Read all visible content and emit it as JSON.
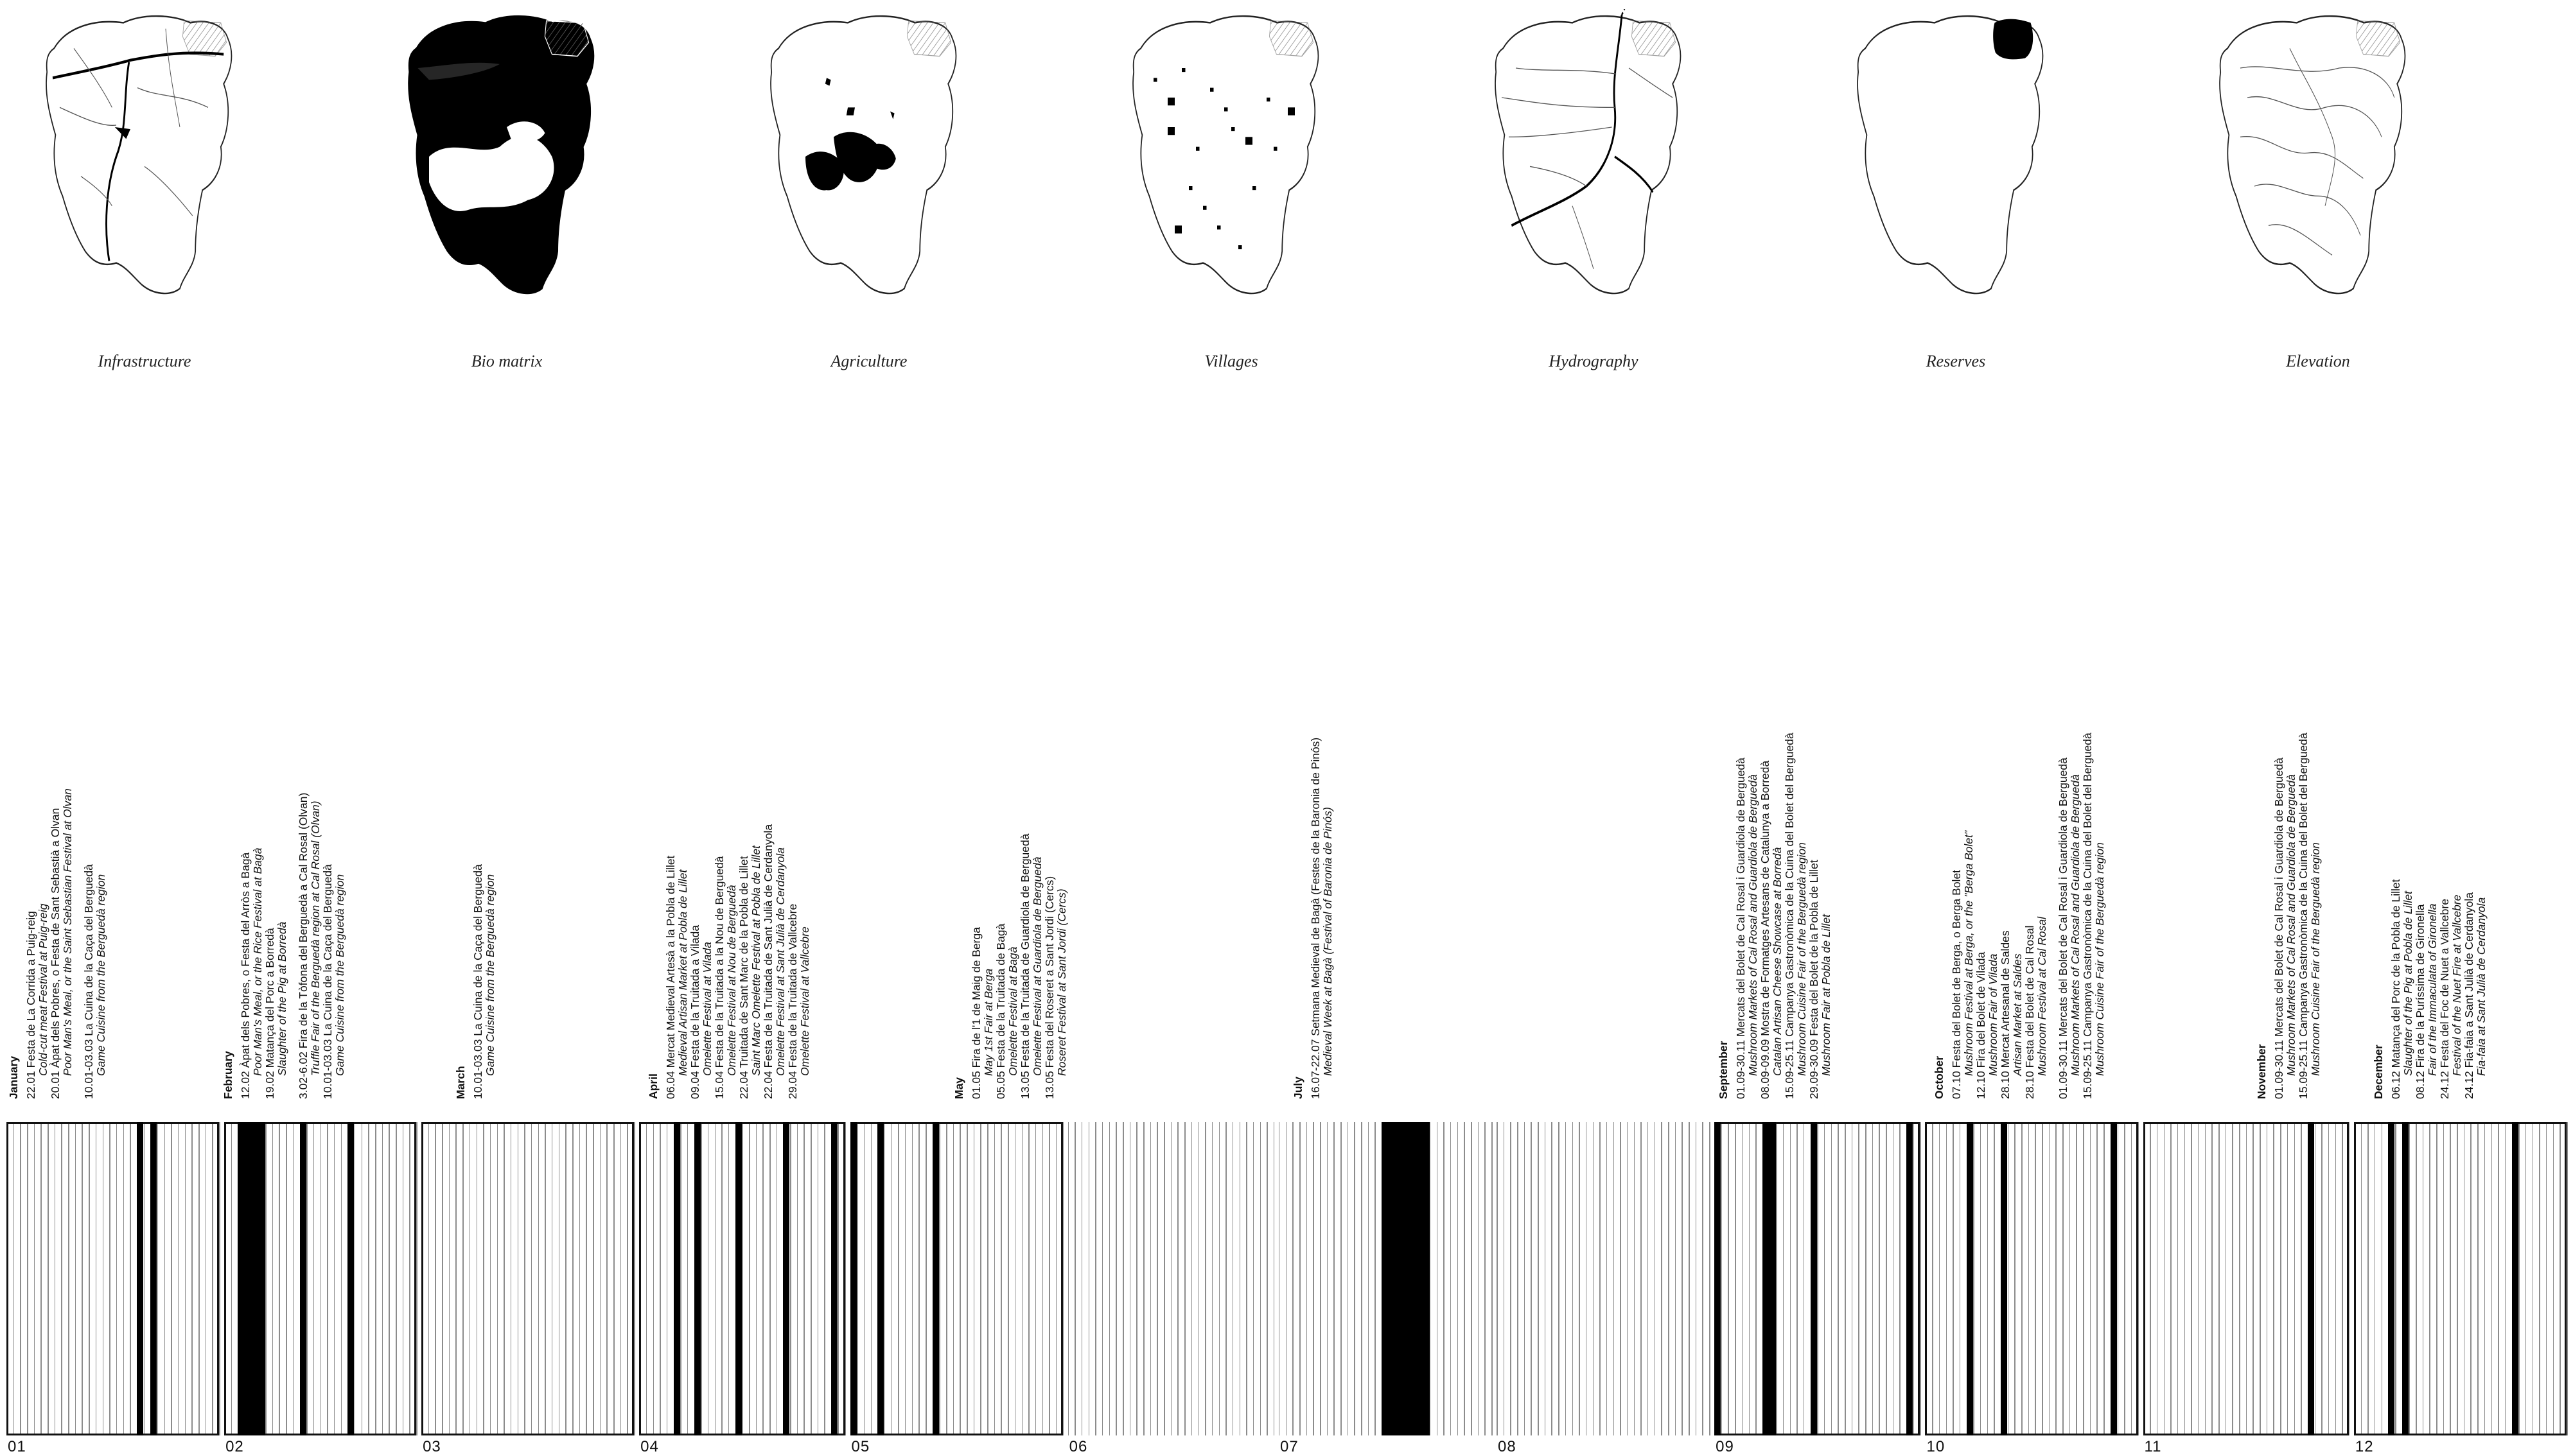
{
  "maps": [
    {
      "id": "infrastructure",
      "caption": "Infrastructure"
    },
    {
      "id": "bio-matrix",
      "caption": "Bio matrix"
    },
    {
      "id": "agriculture",
      "caption": "Agriculture"
    },
    {
      "id": "villages",
      "caption": "Villages"
    },
    {
      "id": "hydrography",
      "caption": "Hydrography"
    },
    {
      "id": "reserves",
      "caption": "Reserves"
    },
    {
      "id": "elevation",
      "caption": "Elevation"
    }
  ],
  "event_blocks": [
    {
      "title": "January",
      "lines": [
        {
          "t": "22.01 Festa de La Corrida a Puig-reig",
          "s": false
        },
        {
          "t": "Cold-cut meat Festival at Puig-reig",
          "s": true
        },
        {
          "t": "20.01 Àpat dels Pobres, o Festa de Sant Sebastià a Olvan",
          "s": false
        },
        {
          "t": "Poor Man's Meal, or the Saint Sebastian Festival at Olvan",
          "s": true
        },
        {
          "t": "",
          "s": false
        },
        {
          "t": "10.01-03.03 La Cuina de la Caça del Berguedà",
          "s": false
        },
        {
          "t": "Game Cuisine from the Berguedà region",
          "s": true
        }
      ]
    },
    {
      "title": "February",
      "lines": [
        {
          "t": "12.02 Àpat dels Pobres, o Festa del Arròs a Bagà",
          "s": false
        },
        {
          "t": "Poor Man's Meal, or the Rice Festival at Bagà",
          "s": true
        },
        {
          "t": "19.02 Matança del Porc a Borredà",
          "s": false
        },
        {
          "t": "Slaughter of the Pig at Borredà",
          "s": true
        },
        {
          "t": "",
          "s": false
        },
        {
          "t": "3.02-6.02 Fira de la Tòfona del Berguedà a Cal Rosal (Olvan)",
          "s": false
        },
        {
          "t": "Truffle Fair of the Berguedà region at Cal Rosal (Olvan)",
          "s": true
        },
        {
          "t": "10.01-03.03 La Cuina de la Caça del Berguedà",
          "s": false
        },
        {
          "t": "Game Cuisine from the Berguedà region",
          "s": true
        }
      ]
    },
    {
      "title": "March",
      "lines": [
        {
          "t": "10.01-03.03 La Cuina de la Caça del Berguedà",
          "s": false
        },
        {
          "t": "Game Cuisine from the Berguedà region",
          "s": true
        }
      ]
    },
    {
      "title": "April",
      "lines": [
        {
          "t": "06.04 Mercat Medieval Artesà a la Pobla de Lillet",
          "s": false
        },
        {
          "t": "Medieval Artisan Market at Pobla de Lillet",
          "s": true
        },
        {
          "t": "09.04 Festa de la Truitada a Vilada",
          "s": false
        },
        {
          "t": "Omelette Festival at Vilada",
          "s": true
        },
        {
          "t": "15.04 Festa de la Truitada a la Nou de Berguedà",
          "s": false
        },
        {
          "t": "Omelette Festival at Nou de Berguedà",
          "s": true
        },
        {
          "t": "22.04 Truitada de Sant Marc de la Pobla de Lillet",
          "s": false
        },
        {
          "t": "Saint Marc Omelette Festival at Pobla de Lillet",
          "s": true
        },
        {
          "t": "22.04 Festa de la Truitada de Sant Julià de Cerdanyola",
          "s": false
        },
        {
          "t": "Omelette Festival at Sant Julià de Cerdanyola",
          "s": true
        },
        {
          "t": "29.04 Festa de la Truitada de Vallcebre",
          "s": false
        },
        {
          "t": "Omelette Festival at Vallcebre",
          "s": true
        }
      ]
    },
    {
      "title": "May",
      "lines": [
        {
          "t": "01.05 Fira de l'1 de Maig de Berga",
          "s": false
        },
        {
          "t": "May 1st Fair at Berga",
          "s": true
        },
        {
          "t": "05.05 Festa de la Truitada de Bagà",
          "s": false
        },
        {
          "t": "Omelette Festival at Bagà",
          "s": true
        },
        {
          "t": "13.05 Festa de la Truitada de Guardiola de Berguedà",
          "s": false
        },
        {
          "t": "Omelette Festival at Guardiola de Berguedà",
          "s": true
        },
        {
          "t": "13.05 Festa del Roseret a Sant Jordi (Cercs)",
          "s": false
        },
        {
          "t": "Roseret Festival at Sant Jordi (Cercs)",
          "s": true
        }
      ]
    },
    {
      "title": "July",
      "lines": [
        {
          "t": "16.07-22.07 Setmana Medieval de Bagà (Festes de la Baronia de Pinós)",
          "s": false
        },
        {
          "t": "Medieval Week at Bagà (Festival of Baronia de Pinós)",
          "s": true
        }
      ]
    },
    {
      "title": "September",
      "lines": [
        {
          "t": "01.09-30.11 Mercats del Bolet de Cal Rosal i Guardiola de Berguedà",
          "s": false
        },
        {
          "t": "Mushroom Markets of Cal Rosal and Guardiola de Berguedà",
          "s": true
        },
        {
          "t": "08.09-09.09 Mostra de Formatges Artesans de Catalunya a Borredà",
          "s": false
        },
        {
          "t": "Catalan Artisan Cheese Showcase at Borredà",
          "s": true
        },
        {
          "t": "15.09-25.11 Campanya Gastronòmica de la Cuina del Bolet del Berguedà",
          "s": false
        },
        {
          "t": "Mushroom Cuisine Fair of the Berguedà region",
          "s": true
        },
        {
          "t": "29.09-30.09 Festa del Bolet de la Pobla de Lillet",
          "s": false
        },
        {
          "t": "Mushroom Fair at Pobla de Lillet",
          "s": true
        }
      ]
    },
    {
      "title": "October",
      "lines": [
        {
          "t": "07.10 Festa del Bolet de Berga, o Berga Bolet",
          "s": false
        },
        {
          "t": "Mushroom Festival at Berga, or the \"Berga Bolet\"",
          "s": true
        },
        {
          "t": "12.10 Fira del Bolet de Vilada",
          "s": false
        },
        {
          "t": "Mushroom Fair of Vilada",
          "s": true
        },
        {
          "t": "28.10 Mercat Artesanal de Saldes",
          "s": false
        },
        {
          "t": "Artisan Market at Saldes",
          "s": true
        },
        {
          "t": "28.10 Festa del Bolet de Cal Rosal",
          "s": false
        },
        {
          "t": "Mushroom Festival at Cal Rosal",
          "s": true
        },
        {
          "t": "",
          "s": false
        },
        {
          "t": "01.09-30.11 Mercats del Bolet de Cal Rosal i Guardiola de Berguedà",
          "s": false
        },
        {
          "t": "Mushroom Markets of Cal Rosal and Guardiola de Berguedà",
          "s": true
        },
        {
          "t": "15.09-25.11 Campanya Gastronòmica de la Cuina del Bolet del Berguedà",
          "s": false
        },
        {
          "t": "Mushroom Cuisine Fair of the Berguedà region",
          "s": true
        }
      ]
    },
    {
      "title": "November",
      "lines": [
        {
          "t": "01.09-30.11 Mercats del Bolet de Cal Rosal i Guardiola de Berguedà",
          "s": false
        },
        {
          "t": "Mushroom Markets of Cal Rosal and Guardiola de Berguedà",
          "s": true
        },
        {
          "t": "15.09-25.11 Campanya Gastronòmica de la Cuina del Bolet del Berguedà",
          "s": false
        },
        {
          "t": "Mushroom Cuisine Fair of the Berguedà region",
          "s": true
        }
      ]
    },
    {
      "title": "December",
      "lines": [
        {
          "t": "06.12 Matança del Porc de la Pobla de Lillet",
          "s": false
        },
        {
          "t": "Slaughter of the Pig at Pobla de Lillet",
          "s": true
        },
        {
          "t": "08.12 Fira de la Puríssima de Gironella",
          "s": false
        },
        {
          "t": "Fair of the Immaculata of Gironella",
          "s": true
        },
        {
          "t": "24.12 Festa del Foc de Nuet a Vallcebre",
          "s": false
        },
        {
          "t": "Festival of the Nuet Fire at Vallcebre",
          "s": true
        },
        {
          "t": "24.12 Fia-faia a Sant Julià de Cerdanyola",
          "s": false
        },
        {
          "t": "Fia-faia at Sant Julià de Cerdanyola",
          "s": true
        }
      ]
    }
  ],
  "timeline": {
    "months": [
      {
        "num": "01",
        "days": 31,
        "framed": true,
        "event_days": [
          [
            20,
            20
          ],
          [
            22,
            22
          ]
        ]
      },
      {
        "num": "02",
        "days": 28,
        "framed": true,
        "event_days": [
          [
            3,
            6
          ],
          [
            12,
            12
          ],
          [
            19,
            19
          ]
        ]
      },
      {
        "num": "03",
        "days": 31,
        "framed": true,
        "event_days": []
      },
      {
        "num": "04",
        "days": 30,
        "framed": true,
        "event_days": [
          [
            6,
            6
          ],
          [
            9,
            9
          ],
          [
            15,
            15
          ],
          [
            22,
            22
          ],
          [
            29,
            29
          ]
        ]
      },
      {
        "num": "05",
        "days": 31,
        "framed": true,
        "event_days": [
          [
            1,
            1
          ],
          [
            5,
            5
          ],
          [
            13,
            13
          ]
        ]
      },
      {
        "num": "06",
        "days": 30,
        "framed": false,
        "event_days": []
      },
      {
        "num": "07",
        "days": 31,
        "framed": false,
        "event_days": [
          [
            16,
            22
          ]
        ]
      },
      {
        "num": "08",
        "days": 31,
        "framed": false,
        "event_days": []
      },
      {
        "num": "09",
        "days": 30,
        "framed": true,
        "event_days": [
          [
            1,
            1
          ],
          [
            8,
            9
          ],
          [
            15,
            15
          ],
          [
            29,
            29
          ]
        ]
      },
      {
        "num": "10",
        "days": 31,
        "framed": true,
        "event_days": [
          [
            7,
            7
          ],
          [
            12,
            12
          ],
          [
            28,
            28
          ]
        ]
      },
      {
        "num": "11",
        "days": 30,
        "framed": true,
        "event_days": [
          [
            25,
            25
          ]
        ]
      },
      {
        "num": "12",
        "days": 31,
        "framed": true,
        "event_days": [
          [
            6,
            6
          ],
          [
            8,
            8
          ],
          [
            24,
            24
          ]
        ]
      }
    ]
  }
}
